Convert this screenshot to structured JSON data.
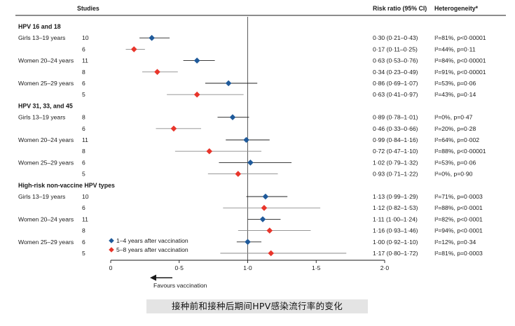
{
  "header": {
    "studies": "Studies",
    "risk_ratio": "Risk ratio (95% CI)",
    "heterogeneity": "Heterogeneity*"
  },
  "legend": [
    {
      "label": "1–4 years after vaccination",
      "color": "#1f5a9a"
    },
    {
      "label": "5–8 years after vaccination",
      "color": "#e8352b"
    }
  ],
  "axis": {
    "ticks": [
      0,
      0.5,
      1.0,
      1.5,
      2.0
    ],
    "tick_labels": [
      "0",
      "0·5",
      "1·0",
      "1·5",
      "2·0"
    ],
    "favours": "Favours vaccination",
    "reference": 1.0
  },
  "caption": "接种前和接种后期间HPV感染流行率的变化",
  "chart_data": {
    "type": "forest",
    "xlim": [
      0,
      2.0
    ],
    "groups": [
      {
        "title": "HPV 16 and 18",
        "rows": [
          {
            "population": "Girls 13–19 years",
            "studies": "10",
            "series": "1–4 years after vaccination",
            "rr": 0.3,
            "lo": 0.21,
            "hi": 0.43,
            "rr_text": "0·30 (0·21–0·43)",
            "het": "I²=81%, p<0·00001"
          },
          {
            "population": "",
            "studies": "6",
            "series": "5–8 years after vaccination",
            "rr": 0.17,
            "lo": 0.11,
            "hi": 0.25,
            "rr_text": "0·17 (0·11–0·25)",
            "het": "I²=44%, p=0·11"
          },
          {
            "population": "Women 20–24 years",
            "studies": "11",
            "series": "1–4 years after vaccination",
            "rr": 0.63,
            "lo": 0.53,
            "hi": 0.76,
            "rr_text": "0·63 (0·53–0·76)",
            "het": "I²=84%, p<0·00001"
          },
          {
            "population": "",
            "studies": "8",
            "series": "5–8 years after vaccination",
            "rr": 0.34,
            "lo": 0.23,
            "hi": 0.49,
            "rr_text": "0·34 (0·23–0·49)",
            "het": "I²=91%, p<0·00001"
          },
          {
            "population": "Women 25–29 years",
            "studies": "6",
            "series": "1–4 years after vaccination",
            "rr": 0.86,
            "lo": 0.69,
            "hi": 1.07,
            "rr_text": "0·86 (0·69–1·07)",
            "het": "I²=53%, p=0·06"
          },
          {
            "population": "",
            "studies": "5",
            "series": "5–8 years after vaccination",
            "rr": 0.63,
            "lo": 0.41,
            "hi": 0.97,
            "rr_text": "0·63 (0·41–0·97)",
            "het": "I²=43%, p=0·14"
          }
        ]
      },
      {
        "title": "HPV 31, 33, and 45",
        "rows": [
          {
            "population": "Girls 13–19 years",
            "studies": "8",
            "series": "1–4 years after vaccination",
            "rr": 0.89,
            "lo": 0.78,
            "hi": 1.01,
            "rr_text": "0·89 (0·78–1·01)",
            "het": "I²=0%, p=0·47"
          },
          {
            "population": "",
            "studies": "6",
            "series": "5–8 years after vaccination",
            "rr": 0.46,
            "lo": 0.33,
            "hi": 0.66,
            "rr_text": "0·46 (0·33–0·66)",
            "het": "I²=20%, p=0·28"
          },
          {
            "population": "Women 20–24 years",
            "studies": "11",
            "series": "1–4 years after vaccination",
            "rr": 0.99,
            "lo": 0.84,
            "hi": 1.16,
            "rr_text": "0·99 (0·84–1·16)",
            "het": "I²=64%, p=0·002"
          },
          {
            "population": "",
            "studies": "8",
            "series": "5–8 years after vaccination",
            "rr": 0.72,
            "lo": 0.47,
            "hi": 1.1,
            "rr_text": "0·72 (0·47–1·10)",
            "het": "I²=88%, p<0·00001"
          },
          {
            "population": "Women 25–29 years",
            "studies": "6",
            "series": "1–4 years after vaccination",
            "rr": 1.02,
            "lo": 0.79,
            "hi": 1.32,
            "rr_text": "1·02 (0·79–1·32)",
            "het": "I²=53%, p=0·06"
          },
          {
            "population": "",
            "studies": "5",
            "series": "5–8 years after vaccination",
            "rr": 0.93,
            "lo": 0.71,
            "hi": 1.22,
            "rr_text": "0·93 (0·71–1·22)",
            "het": "I²=0%, p=0·90"
          }
        ]
      },
      {
        "title": "High-risk non-vaccine HPV types",
        "rows": [
          {
            "population": "Girls 13–19 years",
            "studies": "10",
            "series": "1–4 years after vaccination",
            "rr": 1.13,
            "lo": 0.99,
            "hi": 1.29,
            "rr_text": "1·13 (0·99–1·29)",
            "het": "I²=71%, p=0·0003"
          },
          {
            "population": "",
            "studies": "6",
            "series": "5–8 years after vaccination",
            "rr": 1.12,
            "lo": 0.82,
            "hi": 1.53,
            "rr_text": "1·12 (0·82–1·53)",
            "het": "I²=88%, p<0·0001"
          },
          {
            "population": "Women 20–24 years",
            "studies": "11",
            "series": "1–4 years after vaccination",
            "rr": 1.11,
            "lo": 1.0,
            "hi": 1.24,
            "rr_text": "1·11 (1·00–1·24)",
            "het": "I²=82%, p<0·0001"
          },
          {
            "population": "",
            "studies": "8",
            "series": "5–8 years after vaccination",
            "rr": 1.16,
            "lo": 0.93,
            "hi": 1.46,
            "rr_text": "1·16 (0·93–1·46)",
            "het": "I²=94%, p<0·0001"
          },
          {
            "population": "Women 25–29 years",
            "studies": "6",
            "series": "1–4 years after vaccination",
            "rr": 1.0,
            "lo": 0.92,
            "hi": 1.1,
            "rr_text": "1·00 (0·92–1·10)",
            "het": "I²=12%, p=0·34"
          },
          {
            "population": "",
            "studies": "5",
            "series": "5–8 years after vaccination",
            "rr": 1.17,
            "lo": 0.8,
            "hi": 1.72,
            "rr_text": "1·17 (0·80–1·72)",
            "het": "I²=81%, p=0·0003"
          }
        ]
      }
    ]
  }
}
